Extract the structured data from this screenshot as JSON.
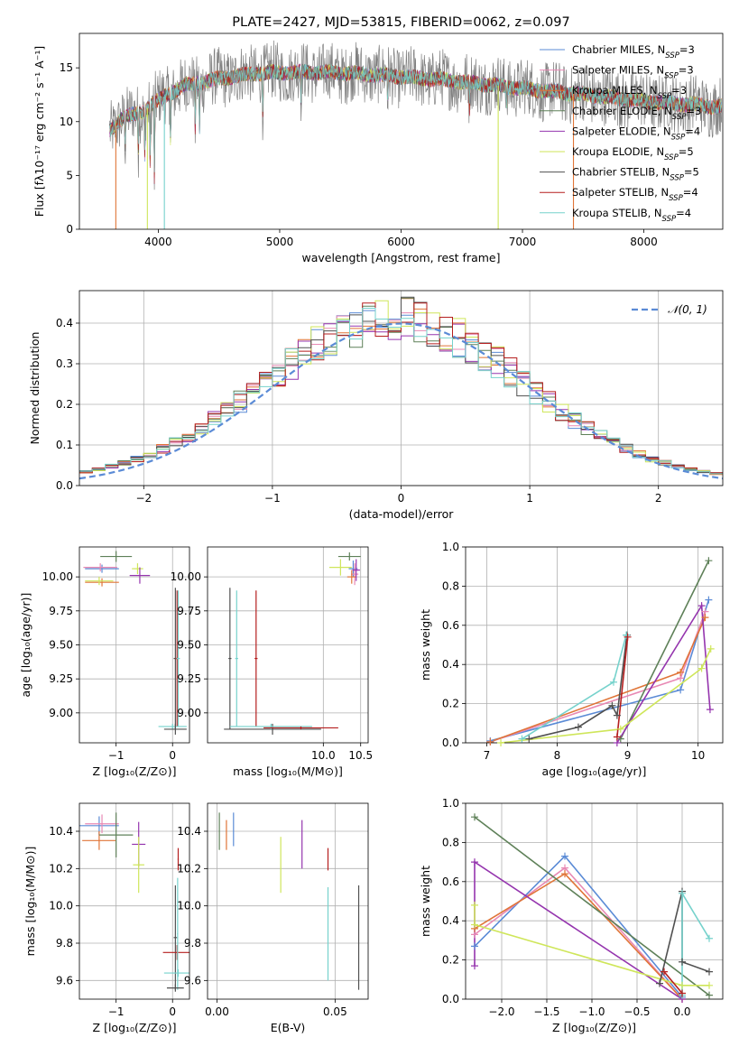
{
  "colors": {
    "Chabrier MILES": "#5b8bd6",
    "Salpeter MILES": "#e889b4",
    "Kroupa MILES": "#e07538",
    "Chabrier ELODIE": "#5e8058",
    "Salpeter ELODIE": "#9535ae",
    "Kroupa ELODIE": "#cfe65a",
    "Chabrier STELIB": "#505050",
    "Salpeter STELIB": "#b51f1f",
    "Kroupa STELIB": "#76d2cc",
    "spectrum": "#808080",
    "gauss": "#5b8bd6"
  },
  "chart_data": [
    {
      "id": "spectrum",
      "type": "line",
      "title": "PLATE=2427, MJD=53815, FIBERID=0062, z=0.097",
      "xlabel": "wavelength [Angstrom, rest frame]",
      "ylabel": "Flux [fλ10⁻¹⁷ erg cm⁻² s⁻¹ A⁻¹]",
      "xlim": [
        3350,
        8650
      ],
      "ylim": [
        0,
        18.2
      ],
      "xticks": [
        4000,
        5000,
        6000,
        7000,
        8000
      ],
      "yticks": [
        0,
        5,
        10,
        15
      ],
      "grid": false,
      "legend": {
        "placement": "top-right",
        "entries": [
          {
            "prefix": "Chabrier MILES, N",
            "sub": "SSP",
            "suffix": "=3",
            "series": "Chabrier MILES"
          },
          {
            "prefix": "Salpeter MILES, N",
            "sub": "SSP",
            "suffix": "=3",
            "series": "Salpeter MILES"
          },
          {
            "prefix": "Kroupa MILES, N",
            "sub": "SSP",
            "suffix": "=3",
            "series": "Kroupa MILES"
          },
          {
            "prefix": "Chabrier ELODIE, N",
            "sub": "SSP",
            "suffix": "=3",
            "series": "Chabrier ELODIE"
          },
          {
            "prefix": "Salpeter ELODIE, N",
            "sub": "SSP",
            "suffix": "=4",
            "series": "Salpeter ELODIE"
          },
          {
            "prefix": "Kroupa ELODIE, N",
            "sub": "SSP",
            "suffix": "=5",
            "series": "Kroupa ELODIE"
          },
          {
            "prefix": "Chabrier STELIB, N",
            "sub": "SSP",
            "suffix": "=5",
            "series": "Chabrier STELIB"
          },
          {
            "prefix": "Salpeter STELIB, N",
            "sub": "SSP",
            "suffix": "=4",
            "series": "Salpeter STELIB"
          },
          {
            "prefix": "Kroupa STELIB, N",
            "sub": "SSP",
            "suffix": "=4",
            "series": "Kroupa STELIB"
          }
        ]
      },
      "continuum": [
        [
          3600,
          9.2
        ],
        [
          3700,
          10.3
        ],
        [
          3850,
          10.8
        ],
        [
          4000,
          12.0
        ],
        [
          4200,
          13.3
        ],
        [
          4500,
          14.0
        ],
        [
          4800,
          14.5
        ],
        [
          5200,
          14.6
        ],
        [
          5600,
          14.5
        ],
        [
          6000,
          14.2
        ],
        [
          6500,
          13.7
        ],
        [
          7000,
          13.1
        ],
        [
          7500,
          12.5
        ],
        [
          8000,
          11.9
        ],
        [
          8600,
          11.4
        ]
      ],
      "model_dropouts": [
        {
          "series": "Kroupa MILES",
          "x": 3650
        },
        {
          "series": "Kroupa ELODIE",
          "x": 3910
        },
        {
          "series": "Kroupa STELIB",
          "x": 4050
        },
        {
          "series": "Kroupa ELODIE",
          "x": 6800
        },
        {
          "series": "Kroupa MILES",
          "x": 7420
        }
      ]
    },
    {
      "id": "residuals",
      "type": "histogram",
      "xlabel": "(data-model)/error",
      "ylabel": "Normed distribution",
      "xlim": [
        -2.5,
        2.5
      ],
      "ylim": [
        0,
        0.48
      ],
      "xticks": [
        -2,
        -1,
        0,
        1,
        2
      ],
      "yticks": [
        0.0,
        0.1,
        0.2,
        0.3,
        0.4
      ],
      "grid": true,
      "bin_width": 0.1,
      "reference": {
        "label": "𝒩(0, 1)",
        "mu": 0,
        "sigma": 1,
        "style": "dashed"
      }
    },
    {
      "id": "age-vs-Z",
      "type": "errorbar",
      "xlabel": "Z [log₁₀(Z/Z⊙)]",
      "ylabel": "age  [log₁₀(age/yr)]",
      "xlim": [
        -1.65,
        0.3
      ],
      "ylim": [
        8.78,
        10.22
      ],
      "xticks": [
        -1,
        0
      ],
      "yticks": [
        9.0,
        9.25,
        9.5,
        9.75,
        10.0
      ],
      "grid": true,
      "points": [
        {
          "series": "Chabrier ELODIE",
          "x": -1.0,
          "y": 10.15,
          "xerr": 0.28,
          "yerr": 0.04
        },
        {
          "series": "Chabrier MILES",
          "x": -1.25,
          "y": 10.06,
          "xerr": 0.3,
          "yerr": 0.03
        },
        {
          "series": "Salpeter MILES",
          "x": -1.28,
          "y": 10.07,
          "xerr": 0.3,
          "yerr": 0.03
        },
        {
          "series": "Kroupa MILES",
          "x": -1.25,
          "y": 9.96,
          "xerr": 0.3,
          "yerr": 0.03
        },
        {
          "series": "Kroupa ELODIE",
          "x": -1.3,
          "y": 9.97,
          "xerr": 0.25,
          "yerr": 0.03
        },
        {
          "series": "Kroupa ELODIE",
          "x": -0.62,
          "y": 10.06,
          "xerr": 0.1,
          "yerr": 0.04
        },
        {
          "series": "Salpeter ELODIE",
          "x": -0.58,
          "y": 10.01,
          "xerr": 0.18,
          "yerr": 0.06
        },
        {
          "series": "Chabrier STELIB",
          "x": 0.05,
          "y": 9.4,
          "xerr": 0.03,
          "yerr": 0.52
        },
        {
          "series": "Salpeter STELIB",
          "x": 0.08,
          "y": 9.4,
          "xerr": 0.03,
          "yerr": 0.5
        },
        {
          "series": "Kroupa STELIB",
          "x": 0.1,
          "y": 9.4,
          "xerr": 0.03,
          "yerr": 0.5
        },
        {
          "series": "Kroupa STELIB",
          "x": 0.0,
          "y": 8.9,
          "xerr": 0.25,
          "yerr": 0.02
        },
        {
          "series": "Chabrier STELIB",
          "x": 0.05,
          "y": 8.88,
          "xerr": 0.2,
          "yerr": 0.04
        }
      ]
    },
    {
      "id": "age-vs-mass",
      "type": "errorbar",
      "xlabel": "mass [log₁₀(M/M⊙)]",
      "ylabel": "",
      "xlim": [
        8.45,
        10.6
      ],
      "ylim": [
        8.78,
        10.22
      ],
      "xticks": [
        10.0,
        10.5
      ],
      "yticks": [
        9.0,
        9.25,
        9.5,
        9.75,
        10.0
      ],
      "grid": true,
      "points": [
        {
          "series": "Chabrier ELODIE",
          "x": 10.35,
          "y": 10.15,
          "xerr": 0.15,
          "yerr": 0.03
        },
        {
          "series": "Chabrier MILES",
          "x": 10.4,
          "y": 10.06,
          "xerr": 0.06,
          "yerr": 0.06
        },
        {
          "series": "Salpeter MILES",
          "x": 10.42,
          "y": 10.02,
          "xerr": 0.05,
          "yerr": 0.08
        },
        {
          "series": "Kroupa MILES",
          "x": 10.38,
          "y": 10.0,
          "xerr": 0.06,
          "yerr": 0.05
        },
        {
          "series": "Salpeter ELODIE",
          "x": 10.44,
          "y": 10.05,
          "xerr": 0.05,
          "yerr": 0.08
        },
        {
          "series": "Kroupa ELODIE",
          "x": 10.23,
          "y": 10.07,
          "xerr": 0.15,
          "yerr": 0.06
        },
        {
          "series": "Chabrier STELIB",
          "x": 9.32,
          "y": 8.88,
          "xerr": 0.65,
          "yerr": 0.04
        },
        {
          "series": "Chabrier STELIB",
          "x": 8.75,
          "y": 9.4,
          "xerr": 0.02,
          "yerr": 0.52
        },
        {
          "series": "Kroupa STELIB",
          "x": 8.84,
          "y": 9.4,
          "xerr": 0.02,
          "yerr": 0.5
        },
        {
          "series": "Salpeter STELIB",
          "x": 9.1,
          "y": 9.4,
          "xerr": 0.02,
          "yerr": 0.5
        },
        {
          "series": "Kroupa STELIB",
          "x": 9.3,
          "y": 8.9,
          "xerr": 0.55,
          "yerr": 0.02
        },
        {
          "series": "Salpeter STELIB",
          "x": 9.7,
          "y": 8.89,
          "xerr": 0.5,
          "yerr": 0.01
        }
      ]
    },
    {
      "id": "weight-vs-age",
      "type": "line",
      "xlabel": "age  [log₁₀(age/yr)]",
      "ylabel": "mass weight",
      "xlim": [
        6.7,
        10.35
      ],
      "ylim": [
        0,
        1.0
      ],
      "xticks": [
        7,
        8,
        9,
        10
      ],
      "yticks": [
        0.0,
        0.2,
        0.4,
        0.6,
        0.8,
        1.0
      ],
      "grid": true,
      "series": [
        {
          "name": "Chabrier MILES",
          "x": [
            7.05,
            9.75,
            10.15
          ],
          "y": [
            0.01,
            0.27,
            0.73
          ]
        },
        {
          "name": "Salpeter MILES",
          "x": [
            7.05,
            9.75,
            10.1
          ],
          "y": [
            0.005,
            0.33,
            0.67
          ]
        },
        {
          "name": "Kroupa MILES",
          "x": [
            7.05,
            9.75,
            10.1
          ],
          "y": [
            0.005,
            0.36,
            0.64
          ]
        },
        {
          "name": "Chabrier ELODIE",
          "x": [
            8.9,
            10.15
          ],
          "y": [
            0.02,
            0.93
          ]
        },
        {
          "name": "Salpeter ELODIE",
          "x": [
            8.85,
            10.05,
            10.17
          ],
          "y": [
            0.0,
            0.7,
            0.17
          ]
        },
        {
          "name": "Kroupa ELODIE",
          "x": [
            7.2,
            8.9,
            10.05,
            10.18
          ],
          "y": [
            0.0,
            0.07,
            0.38,
            0.48
          ]
        },
        {
          "name": "Chabrier STELIB",
          "x": [
            7.6,
            8.3,
            8.78,
            8.85,
            8.99
          ],
          "y": [
            0.02,
            0.08,
            0.19,
            0.14,
            0.55
          ]
        },
        {
          "name": "Kroupa STELIB",
          "x": [
            7.5,
            8.8,
            8.98
          ],
          "y": [
            0.02,
            0.31,
            0.55
          ]
        },
        {
          "name": "Salpeter STELIB",
          "x": [
            8.85,
            9.0
          ],
          "y": [
            0.03,
            0.54
          ]
        }
      ]
    },
    {
      "id": "mass-vs-Z",
      "type": "errorbar",
      "xlabel": "Z [log₁₀(Z/Z⊙)]",
      "ylabel": "mass [log₁₀(M/M⊙)]",
      "xlim": [
        -1.65,
        0.3
      ],
      "ylim": [
        9.5,
        10.55
      ],
      "xticks": [
        -1,
        0
      ],
      "yticks": [
        9.6,
        9.8,
        10.0,
        10.2,
        10.4
      ],
      "grid": true,
      "points": [
        {
          "series": "Chabrier MILES",
          "x": -1.3,
          "y": 10.43,
          "xerr": 0.35,
          "yerr": 0.05
        },
        {
          "series": "Salpeter MILES",
          "x": -1.25,
          "y": 10.44,
          "xerr": 0.3,
          "yerr": 0.05
        },
        {
          "series": "Kroupa MILES",
          "x": -1.3,
          "y": 10.35,
          "xerr": 0.3,
          "yerr": 0.05
        },
        {
          "series": "Chabrier ELODIE",
          "x": -1.0,
          "y": 10.38,
          "xerr": 0.3,
          "yerr": 0.12
        },
        {
          "series": "Salpeter ELODIE",
          "x": -0.6,
          "y": 10.33,
          "xerr": 0.12,
          "yerr": 0.12
        },
        {
          "series": "Kroupa ELODIE",
          "x": -0.6,
          "y": 10.22,
          "xerr": 0.1,
          "yerr": 0.15
        },
        {
          "series": "Chabrier STELIB",
          "x": 0.05,
          "y": 9.83,
          "xerr": 0.03,
          "yerr": 0.28
        },
        {
          "series": "Salpeter STELIB",
          "x": 0.08,
          "y": 9.75,
          "xerr": 0.25,
          "yerr": 0.04
        },
        {
          "series": "Salpeter STELIB",
          "x": 0.1,
          "y": 10.25,
          "xerr": 0.01,
          "yerr": 0.06
        },
        {
          "series": "Kroupa STELIB",
          "x": 0.1,
          "y": 9.64,
          "xerr": 0.25,
          "yerr": 0.02
        },
        {
          "series": "Kroupa STELIB",
          "x": 0.09,
          "y": 9.85,
          "xerr": 0.01,
          "yerr": 0.3
        },
        {
          "series": "Chabrier STELIB",
          "x": 0.05,
          "y": 9.56,
          "xerr": 0.15,
          "yerr": 0.02
        }
      ]
    },
    {
      "id": "mass-vs-ebv",
      "type": "errorbar",
      "xlabel": "E(B-V)",
      "ylabel": "",
      "xlim": [
        -0.004,
        0.064
      ],
      "ylim": [
        9.5,
        10.55
      ],
      "xticks": [
        0.0,
        0.05
      ],
      "yticks": [
        9.6,
        9.8,
        10.0,
        10.2,
        10.4
      ],
      "grid": true,
      "points": [
        {
          "series": "Chabrier ELODIE",
          "x": 0.001,
          "y": 10.4,
          "xerr": 0,
          "yerr": 0.1
        },
        {
          "series": "Kroupa MILES",
          "x": 0.004,
          "y": 10.38,
          "xerr": 0,
          "yerr": 0.08
        },
        {
          "series": "Chabrier MILES",
          "x": 0.007,
          "y": 10.41,
          "xerr": 0,
          "yerr": 0.09
        },
        {
          "series": "Kroupa ELODIE",
          "x": 0.027,
          "y": 10.22,
          "xerr": 0,
          "yerr": 0.15
        },
        {
          "series": "Salpeter ELODIE",
          "x": 0.036,
          "y": 10.33,
          "xerr": 0,
          "yerr": 0.13
        },
        {
          "series": "Salpeter STELIB",
          "x": 0.047,
          "y": 10.25,
          "xerr": 0,
          "yerr": 0.06
        },
        {
          "series": "Kroupa STELIB",
          "x": 0.047,
          "y": 9.85,
          "xerr": 0,
          "yerr": 0.25
        },
        {
          "series": "Chabrier STELIB",
          "x": 0.06,
          "y": 9.83,
          "xerr": 0,
          "yerr": 0.28
        }
      ]
    },
    {
      "id": "weight-vs-Z",
      "type": "line",
      "xlabel": "Z [log₁₀(Z/Z⊙)]",
      "ylabel": "mass weight",
      "xlim": [
        -2.4,
        0.45
      ],
      "ylim": [
        0,
        1.0
      ],
      "xticks": [
        -2.0,
        -1.5,
        -1.0,
        -0.5,
        0.0
      ],
      "yticks": [
        0.0,
        0.2,
        0.4,
        0.6,
        0.8,
        1.0
      ],
      "grid": true,
      "series": [
        {
          "name": "Chabrier MILES",
          "x": [
            -2.3,
            -1.3,
            0.0
          ],
          "y": [
            0.27,
            0.73,
            0.01
          ]
        },
        {
          "name": "Salpeter MILES",
          "x": [
            -2.3,
            -1.3,
            0.0
          ],
          "y": [
            0.33,
            0.67,
            0.0
          ]
        },
        {
          "name": "Kroupa MILES",
          "x": [
            -2.3,
            -1.3,
            0.0
          ],
          "y": [
            0.36,
            0.64,
            0.0
          ]
        },
        {
          "name": "Chabrier ELODIE",
          "x": [
            -2.3,
            0.3
          ],
          "y": [
            0.93,
            0.02
          ]
        },
        {
          "name": "Salpeter ELODIE",
          "x": [
            -2.3,
            -2.3,
            0.0
          ],
          "y": [
            0.17,
            0.7,
            0.0
          ]
        },
        {
          "name": "Kroupa ELODIE",
          "x": [
            -2.3,
            -2.3,
            0.0,
            0.3
          ],
          "y": [
            0.48,
            0.38,
            0.07,
            0.07
          ]
        },
        {
          "name": "Chabrier STELIB",
          "x": [
            -0.25,
            0.0,
            0.0,
            0.3
          ],
          "y": [
            0.08,
            0.55,
            0.19,
            0.14
          ]
        },
        {
          "name": "Kroupa STELIB",
          "x": [
            0.0,
            0.0,
            0.3
          ],
          "y": [
            0.02,
            0.54,
            0.31
          ]
        },
        {
          "name": "Salpeter STELIB",
          "x": [
            -0.2,
            0.0
          ],
          "y": [
            0.14,
            0.03
          ]
        }
      ]
    }
  ]
}
